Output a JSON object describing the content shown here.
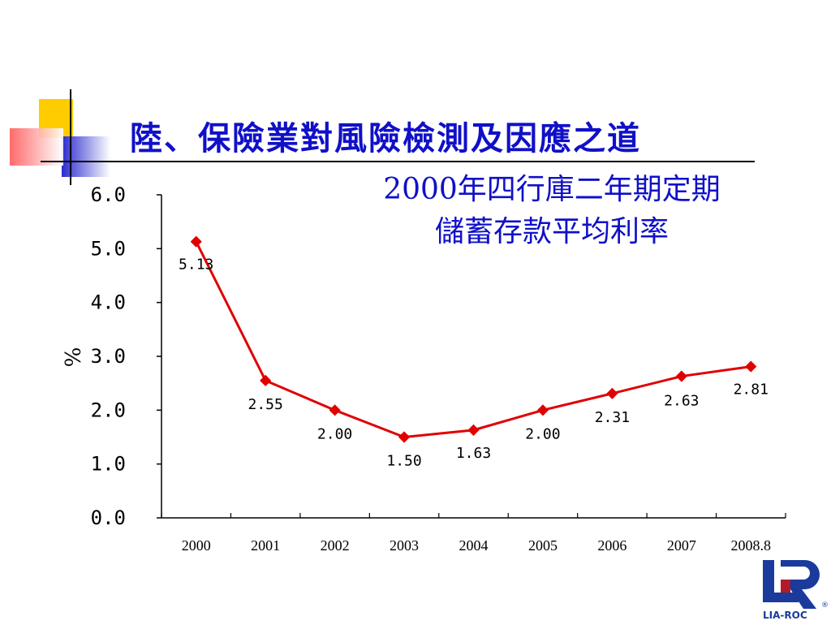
{
  "slide": {
    "title": "陸、保險業對風險檢測及因應之道"
  },
  "chart_data": {
    "type": "line",
    "title_line1": "2000年四行庫二年期定期",
    "title_line2": "儲蓄存款平均利率",
    "ylabel": "%",
    "xlabel": "",
    "categories": [
      "2000",
      "2001",
      "2002",
      "2003",
      "2004",
      "2005",
      "2006",
      "2007",
      "2008.8"
    ],
    "series": [
      {
        "values": [
          5.13,
          2.55,
          2.0,
          1.5,
          1.63,
          2.0,
          2.31,
          2.63,
          2.81
        ],
        "labels": [
          "5.13",
          "2.55",
          "2.00",
          "1.50",
          "1.63",
          "2.00",
          "2.31",
          "2.63",
          "2.81"
        ]
      }
    ],
    "yticks": [
      "0.0",
      "1.0",
      "2.0",
      "3.0",
      "4.0",
      "5.0",
      "6.0"
    ],
    "ylim": [
      0,
      6
    ],
    "grid": false,
    "line_color": "#e00000"
  },
  "logo": {
    "text": "LIA-ROC",
    "mark": "®",
    "colors": {
      "primary": "#1a3a9c",
      "accent": "#b01b2e"
    }
  }
}
